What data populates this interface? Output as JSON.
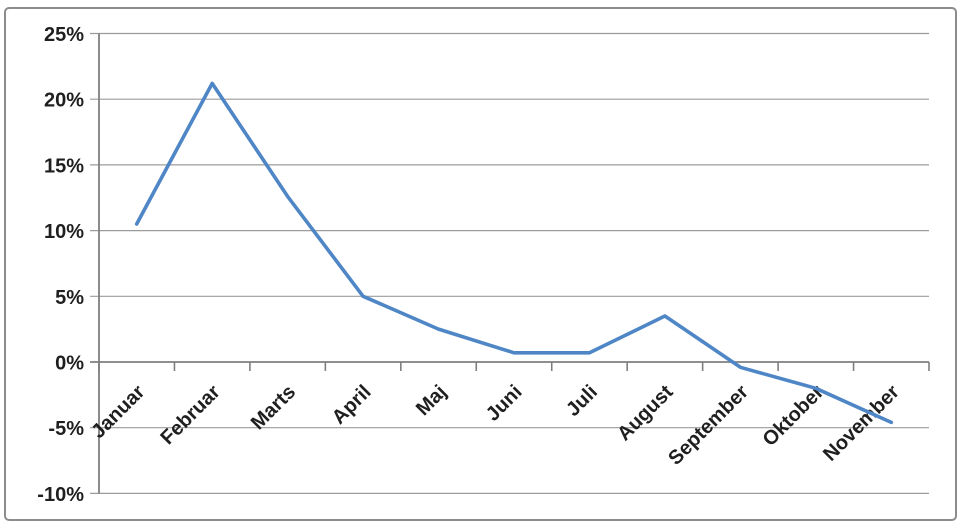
{
  "chart": {
    "accent_color": "#4f86c6",
    "grid_color": "#9b9b9b",
    "axis_color": "#7f7f7f",
    "border_color": "#8c8c8c",
    "text_color": "#1f1f1f",
    "background_color": "#ffffff"
  },
  "chart_data": {
    "type": "line",
    "title": "",
    "xlabel": "",
    "ylabel": "",
    "categories": [
      "Januar",
      "Februar",
      "Marts",
      "April",
      "Maj",
      "Juni",
      "Juli",
      "August",
      "September",
      "Oktober",
      "November"
    ],
    "values": [
      10.5,
      21.2,
      12.6,
      5.0,
      2.5,
      0.7,
      0.7,
      3.5,
      -0.4,
      -2.0,
      -4.6
    ],
    "unit": "%",
    "ylim": [
      -10,
      25
    ],
    "yticks": [
      25,
      20,
      15,
      10,
      5,
      0,
      -5,
      -10
    ],
    "ytick_labels": [
      "25%",
      "20%",
      "15%",
      "10%",
      "5%",
      "0%",
      "-5%",
      "-10%"
    ],
    "grid": true,
    "legend": false,
    "x_label_rotation_deg": -45
  }
}
